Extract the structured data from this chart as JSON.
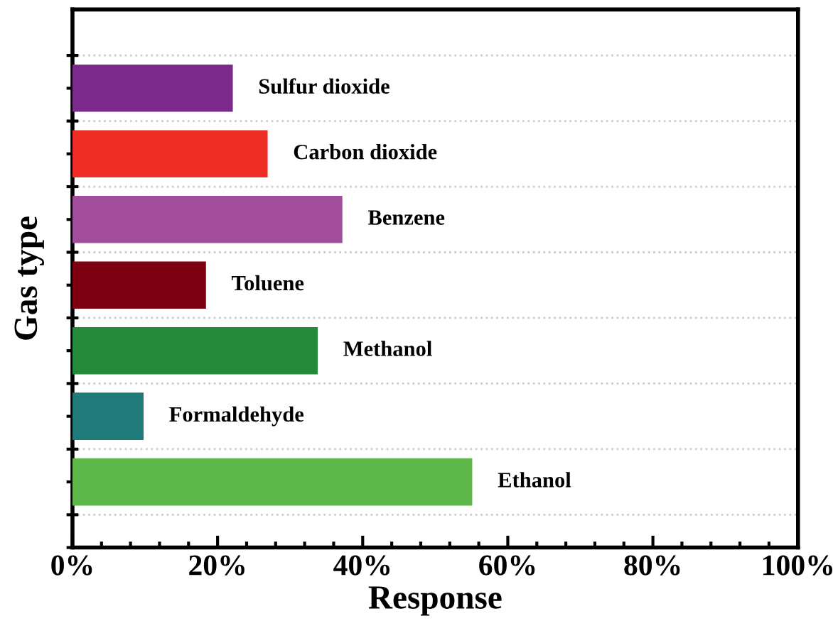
{
  "chart_data": {
    "type": "bar",
    "orientation": "horizontal",
    "xlabel": "Response",
    "ylabel": "Gas type",
    "categories": [
      "Sulfur dioxide",
      "Carbon dioxide",
      "Benzene",
      "Toluene",
      "Methanol",
      "Formaldehyde",
      "Ethanol"
    ],
    "values": [
      22.1,
      26.9,
      37.2,
      18.4,
      33.8,
      9.8,
      55.1
    ],
    "colors": [
      "#7b2a8c",
      "#ee2e24",
      "#a14d9c",
      "#7d0010",
      "#268a3c",
      "#1f7b7a",
      "#5fb94a"
    ],
    "xlim": [
      0,
      100
    ],
    "xticks": [
      {
        "value": 0,
        "label": "0%"
      },
      {
        "value": 20,
        "label": "20%"
      },
      {
        "value": 40,
        "label": "40%"
      },
      {
        "value": 60,
        "label": "60%"
      },
      {
        "value": 80,
        "label": "80%"
      },
      {
        "value": 100,
        "label": "100%"
      }
    ],
    "tick_labels": "x",
    "grid": "y",
    "legend": false
  }
}
